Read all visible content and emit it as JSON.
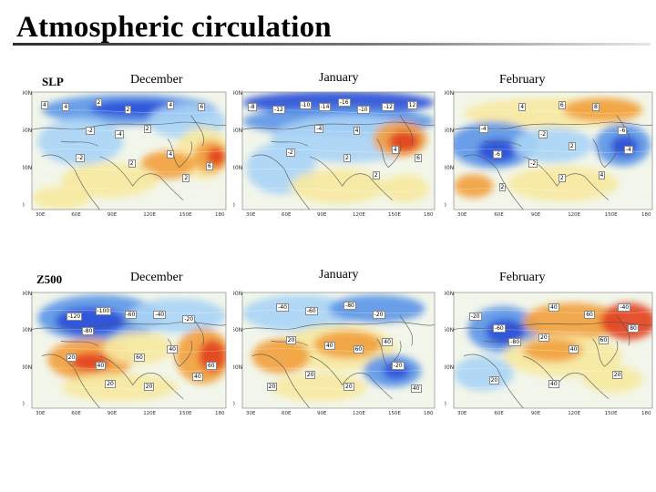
{
  "title": "Atmospheric circulation",
  "rows": [
    {
      "label": "SLP",
      "panels": [
        {
          "month": "December",
          "lat_labels": [
            "90N",
            "60N",
            "30N",
            "0"
          ],
          "lon_labels": [
            "30E",
            "60E",
            "90E",
            "120E",
            "150E",
            "180"
          ],
          "numbers": [
            "4",
            "4",
            "2",
            "2",
            "4",
            "6",
            "-2",
            "-4",
            "2",
            "-2",
            "2",
            "4",
            "6",
            "2"
          ]
        },
        {
          "month": "January",
          "lat_labels": [
            "90N",
            "60N",
            "30N",
            "0"
          ],
          "lon_labels": [
            "30E",
            "60E",
            "90E",
            "120E",
            "150E",
            "180"
          ],
          "numbers": [
            "-8",
            "-12",
            "-10",
            "-14",
            "-16",
            "-10",
            "-12",
            "12",
            "-4",
            "4",
            "-2",
            "2",
            "4",
            "6",
            "2"
          ]
        },
        {
          "month": "February",
          "lat_labels": [
            "90N",
            "60N",
            "30N",
            "0"
          ],
          "lon_labels": [
            "30E",
            "60E",
            "90E",
            "120E",
            "150E",
            "180"
          ],
          "numbers": [
            "4",
            "6",
            "8",
            "-4",
            "-6",
            "-2",
            "2",
            "-6",
            "-4",
            "-2",
            "2",
            "4",
            "2"
          ]
        }
      ]
    },
    {
      "label": "Z500",
      "panels": [
        {
          "month": "December",
          "lat_labels": [
            "90N",
            "60N",
            "30N",
            "0"
          ],
          "lon_labels": [
            "30E",
            "60E",
            "90E",
            "120E",
            "150E",
            "180"
          ],
          "numbers": [
            "-120",
            "-100",
            "-60",
            "-80",
            "-40",
            "-20",
            "20",
            "40",
            "60",
            "40",
            "20",
            "60",
            "40",
            "20"
          ]
        },
        {
          "month": "January",
          "lat_labels": [
            "90N",
            "60N",
            "30N",
            "0"
          ],
          "lon_labels": [
            "30E",
            "60E",
            "90E",
            "120E",
            "150E",
            "180"
          ],
          "numbers": [
            "-40",
            "-60",
            "-80",
            "-20",
            "20",
            "40",
            "60",
            "40",
            "20",
            "-20",
            "20",
            "40",
            "20"
          ]
        },
        {
          "month": "February",
          "lat_labels": [
            "90N",
            "60N",
            "30N",
            "0"
          ],
          "lon_labels": [
            "30E",
            "60E",
            "90E",
            "120E",
            "150E",
            "180"
          ],
          "numbers": [
            "-20",
            "40",
            "60",
            "-60",
            "-80",
            "-40",
            "20",
            "40",
            "60",
            "80",
            "20",
            "40",
            "20"
          ]
        }
      ]
    }
  ],
  "colors": {
    "deep_blue": "#2a4fd8",
    "mid_blue": "#5b95e8",
    "light_blue": "#a8d4f6",
    "pale": "#f2f6ea",
    "yellow": "#f7e9a0",
    "orange": "#f2a03c",
    "red": "#e2401e",
    "coast": "#555555"
  }
}
